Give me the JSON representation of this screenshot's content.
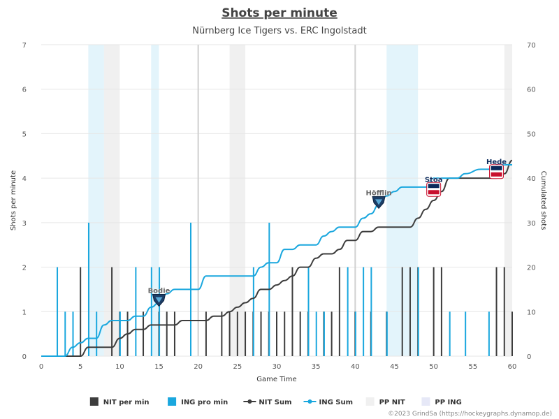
{
  "chart_data": {
    "type": "bar",
    "title": "Shots per minute",
    "subtitle": "Nürnberg Ice Tigers vs. ERC Ingolstadt",
    "xlabel": "Game Time",
    "ylabel": "Shots per minute",
    "y2label": "Cumulated shots",
    "xlim": [
      0,
      60
    ],
    "ylim": [
      0,
      7
    ],
    "y2lim": [
      0,
      70
    ],
    "x_ticks": [
      0,
      5,
      10,
      15,
      20,
      25,
      30,
      35,
      40,
      45,
      50,
      55,
      60
    ],
    "y_ticks": [
      0,
      1,
      2,
      3,
      4,
      5,
      6,
      7
    ],
    "y2_ticks": [
      0,
      10,
      20,
      30,
      40,
      50,
      60,
      70
    ],
    "period_lines": [
      20,
      40
    ],
    "colors": {
      "nit": "#3d3d3d",
      "ing": "#1aa7de",
      "pp_nit": "#f0f0f0",
      "pp_ing": "#e3f4fb",
      "grid": "#e6e6e6",
      "period": "#d0d0d0"
    },
    "powerplays": [
      {
        "team": "ING",
        "start": 6,
        "end": 8
      },
      {
        "team": "NIT",
        "start": 8,
        "end": 10
      },
      {
        "team": "ING",
        "start": 14,
        "end": 15
      },
      {
        "team": "NIT",
        "start": 24,
        "end": 26
      },
      {
        "team": "ING",
        "start": 44,
        "end": 48
      },
      {
        "team": "NIT",
        "start": 59,
        "end": 60
      }
    ],
    "series": [
      {
        "name": "NIT per min",
        "type": "bar",
        "values": [
          [
            5,
            2
          ],
          [
            9,
            2
          ],
          [
            10,
            1
          ],
          [
            11,
            1
          ],
          [
            13,
            1
          ],
          [
            15,
            1
          ],
          [
            16,
            1
          ],
          [
            17,
            1
          ],
          [
            21,
            1
          ],
          [
            23,
            1
          ],
          [
            24,
            1
          ],
          [
            25,
            1
          ],
          [
            26,
            1
          ],
          [
            27,
            1
          ],
          [
            28,
            1
          ],
          [
            29,
            1
          ],
          [
            30,
            1
          ],
          [
            31,
            1
          ],
          [
            32,
            2
          ],
          [
            33,
            1
          ],
          [
            34,
            1
          ],
          [
            36,
            1
          ],
          [
            37,
            1
          ],
          [
            38,
            2
          ],
          [
            40,
            1
          ],
          [
            42,
            1
          ],
          [
            44,
            1
          ],
          [
            46,
            2
          ],
          [
            47,
            2
          ],
          [
            48,
            2
          ],
          [
            50,
            2
          ],
          [
            51,
            2
          ],
          [
            58,
            2
          ],
          [
            59,
            2
          ],
          [
            60,
            1
          ]
        ]
      },
      {
        "name": "ING pro min",
        "type": "bar",
        "values": [
          [
            3,
            2
          ],
          [
            4,
            1
          ],
          [
            5,
            1
          ],
          [
            7,
            3
          ],
          [
            8,
            1
          ],
          [
            11,
            1
          ],
          [
            13,
            2
          ],
          [
            15,
            2
          ],
          [
            16,
            2
          ],
          [
            20,
            3
          ],
          [
            28,
            2
          ],
          [
            30,
            3
          ],
          [
            35,
            2
          ],
          [
            36,
            1
          ],
          [
            37,
            1
          ],
          [
            40,
            2
          ],
          [
            41,
            1
          ],
          [
            42,
            2
          ],
          [
            43,
            2
          ],
          [
            45,
            1
          ],
          [
            49,
            2
          ],
          [
            53,
            1
          ],
          [
            55,
            1
          ],
          [
            58,
            1
          ]
        ]
      },
      {
        "name": "NIT Sum",
        "type": "line",
        "points": [
          [
            0,
            0
          ],
          [
            5,
            0
          ],
          [
            6,
            2
          ],
          [
            9,
            2
          ],
          [
            10,
            4
          ],
          [
            11,
            5
          ],
          [
            12,
            6
          ],
          [
            13,
            6
          ],
          [
            14,
            7
          ],
          [
            17,
            7
          ],
          [
            18,
            8
          ],
          [
            21,
            8
          ],
          [
            22,
            9
          ],
          [
            23,
            9
          ],
          [
            24,
            10
          ],
          [
            25,
            11
          ],
          [
            26,
            12
          ],
          [
            27,
            13
          ],
          [
            28,
            15
          ],
          [
            29,
            15
          ],
          [
            30,
            16
          ],
          [
            31,
            17
          ],
          [
            32,
            18
          ],
          [
            33,
            20
          ],
          [
            34,
            20
          ],
          [
            35,
            22
          ],
          [
            36,
            23
          ],
          [
            37,
            23
          ],
          [
            38,
            24
          ],
          [
            39,
            26
          ],
          [
            40,
            26
          ],
          [
            41,
            28
          ],
          [
            42,
            28
          ],
          [
            43,
            29
          ],
          [
            47,
            29
          ],
          [
            48,
            31
          ],
          [
            49,
            33
          ],
          [
            50,
            35
          ],
          [
            51,
            37
          ],
          [
            52,
            40
          ],
          [
            57,
            40
          ],
          [
            58,
            40
          ],
          [
            59,
            41
          ],
          [
            60,
            44
          ]
        ]
      },
      {
        "name": "ING Sum",
        "type": "line",
        "points": [
          [
            0,
            0
          ],
          [
            3,
            0
          ],
          [
            4,
            2
          ],
          [
            5,
            3
          ],
          [
            6,
            4
          ],
          [
            7,
            4
          ],
          [
            8,
            7
          ],
          [
            9,
            8
          ],
          [
            11,
            8
          ],
          [
            12,
            9
          ],
          [
            13,
            9
          ],
          [
            14,
            11
          ],
          [
            15,
            12
          ],
          [
            16,
            14
          ],
          [
            17,
            15
          ],
          [
            20,
            15
          ],
          [
            21,
            18
          ],
          [
            27,
            18
          ],
          [
            28,
            20
          ],
          [
            29,
            21
          ],
          [
            30,
            21
          ],
          [
            31,
            24
          ],
          [
            32,
            24
          ],
          [
            33,
            25
          ],
          [
            35,
            25
          ],
          [
            36,
            27
          ],
          [
            37,
            28
          ],
          [
            38,
            29
          ],
          [
            40,
            29
          ],
          [
            41,
            31
          ],
          [
            42,
            32
          ],
          [
            43,
            34
          ],
          [
            44,
            36
          ],
          [
            45,
            37
          ],
          [
            46,
            38
          ],
          [
            49,
            38
          ],
          [
            50,
            40
          ],
          [
            53,
            40
          ],
          [
            54,
            41
          ],
          [
            56,
            42
          ],
          [
            57,
            42
          ],
          [
            58,
            43
          ],
          [
            60,
            43
          ]
        ]
      }
    ],
    "legend": {
      "position": "bottom",
      "items": [
        {
          "label": "NIT per min",
          "kind": "square",
          "color": "#3d3d3d"
        },
        {
          "label": "ING pro min",
          "kind": "square",
          "color": "#1aa7de"
        },
        {
          "label": "NIT Sum",
          "kind": "line",
          "color": "#3d3d3d"
        },
        {
          "label": "ING Sum",
          "kind": "line",
          "color": "#1aa7de"
        },
        {
          "label": "PP NIT",
          "kind": "square",
          "color": "#f0f0f0"
        },
        {
          "label": "PP ING",
          "kind": "square",
          "color": "#e6e8f7"
        }
      ]
    },
    "goals": [
      {
        "player": "Bodie",
        "minute": 15,
        "cum": 12,
        "team": "NIT",
        "label_color": "#666666",
        "logo": "ice-tigers-logo"
      },
      {
        "player": "Höfflin",
        "minute": 43,
        "cum": 34,
        "team": "NIT",
        "label_color": "#666666",
        "logo": "ice-tigers-logo"
      },
      {
        "player": "Stoa",
        "minute": 50,
        "cum": 37,
        "team": "ING",
        "label_color": "#0b2a5b",
        "logo": "erc-ingolstadt-logo"
      },
      {
        "player": "Hede",
        "minute": 58,
        "cum": 41,
        "team": "ING",
        "label_color": "#0b2a5b",
        "logo": "erc-ingolstadt-logo"
      }
    ],
    "credit": "©2023 GrindSa (https://hockeygraphs.dynamop.de)"
  }
}
